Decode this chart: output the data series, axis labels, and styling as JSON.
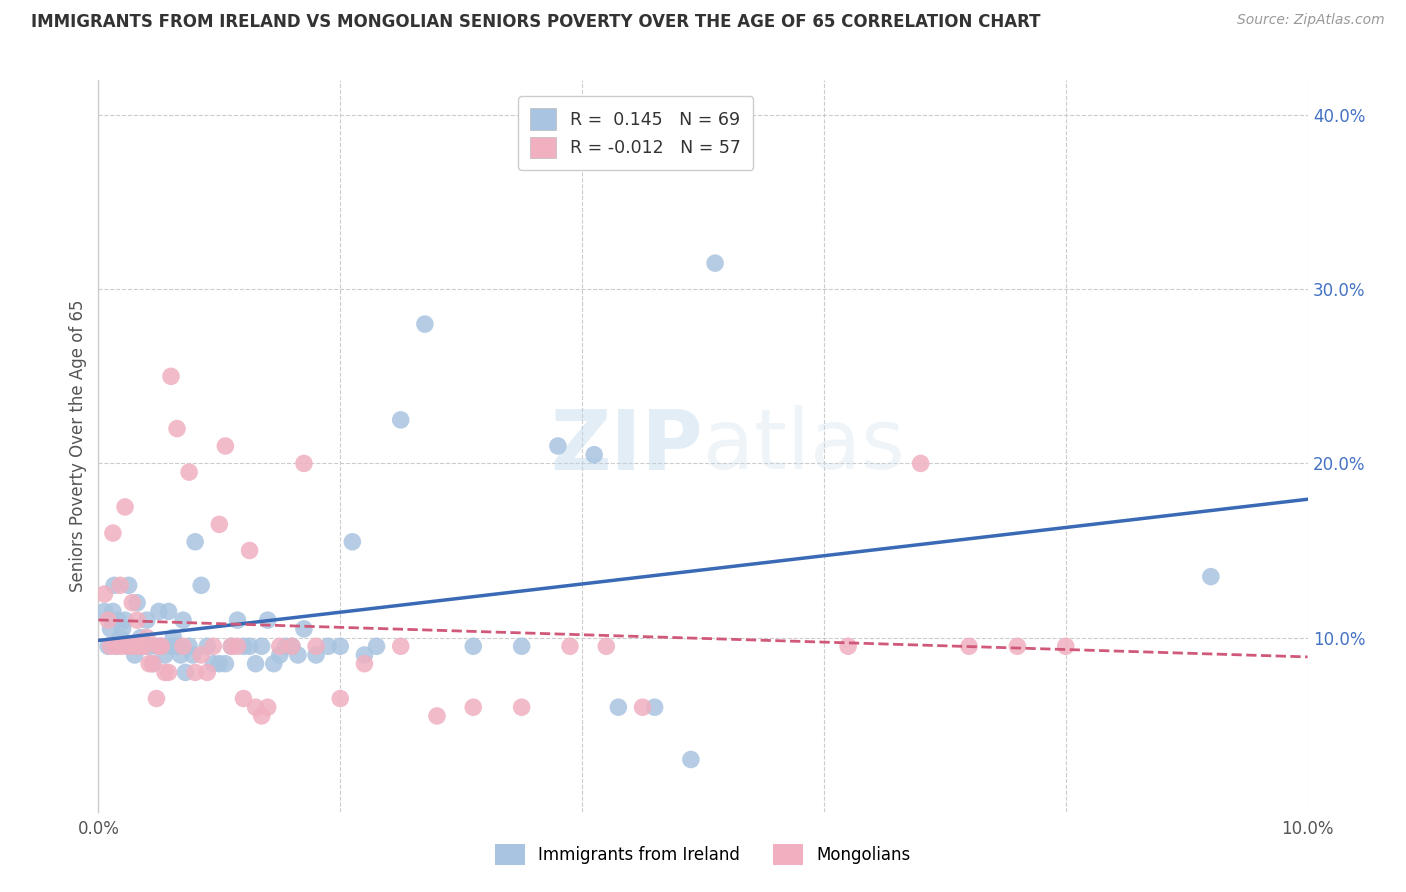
{
  "title": "IMMIGRANTS FROM IRELAND VS MONGOLIAN SENIORS POVERTY OVER THE AGE OF 65 CORRELATION CHART",
  "source": "Source: ZipAtlas.com",
  "ylabel": "Seniors Poverty Over the Age of 65",
  "xlim": [
    0.0,
    0.1
  ],
  "ylim": [
    0.0,
    0.42
  ],
  "ireland_color": "#a8c4e0",
  "mongolia_color": "#f0b0c0",
  "ireland_line_color": "#3a6ab5",
  "mongolia_line_color": "#d05878",
  "legend_R_ireland": "0.145",
  "legend_N_ireland": "69",
  "legend_R_mongolia": "-0.012",
  "legend_N_mongolia": "57",
  "ireland_x": [
    0.0005,
    0.0008,
    0.001,
    0.0012,
    0.0013,
    0.0015,
    0.0016,
    0.0018,
    0.002,
    0.0022,
    0.0025,
    0.0025,
    0.0028,
    0.003,
    0.0032,
    0.0035,
    0.0038,
    0.004,
    0.0042,
    0.0045,
    0.0048,
    0.005,
    0.0052,
    0.0055,
    0.0058,
    0.006,
    0.0062,
    0.0065,
    0.0068,
    0.007,
    0.0072,
    0.0075,
    0.0078,
    0.008,
    0.0085,
    0.009,
    0.0095,
    0.01,
    0.0105,
    0.011,
    0.0115,
    0.012,
    0.0125,
    0.013,
    0.0135,
    0.014,
    0.0145,
    0.015,
    0.0155,
    0.016,
    0.0165,
    0.017,
    0.018,
    0.019,
    0.02,
    0.021,
    0.022,
    0.023,
    0.025,
    0.027,
    0.031,
    0.035,
    0.038,
    0.041,
    0.043,
    0.046,
    0.049,
    0.051,
    0.092
  ],
  "ireland_y": [
    0.115,
    0.095,
    0.105,
    0.115,
    0.13,
    0.095,
    0.11,
    0.1,
    0.105,
    0.11,
    0.095,
    0.13,
    0.095,
    0.09,
    0.12,
    0.1,
    0.095,
    0.11,
    0.095,
    0.085,
    0.095,
    0.115,
    0.095,
    0.09,
    0.115,
    0.095,
    0.1,
    0.095,
    0.09,
    0.11,
    0.08,
    0.095,
    0.09,
    0.155,
    0.13,
    0.095,
    0.085,
    0.085,
    0.085,
    0.095,
    0.11,
    0.095,
    0.095,
    0.085,
    0.095,
    0.11,
    0.085,
    0.09,
    0.095,
    0.095,
    0.09,
    0.105,
    0.09,
    0.095,
    0.095,
    0.155,
    0.09,
    0.095,
    0.225,
    0.28,
    0.095,
    0.095,
    0.21,
    0.205,
    0.06,
    0.06,
    0.03,
    0.315,
    0.135
  ],
  "mongolia_x": [
    0.0005,
    0.0008,
    0.001,
    0.0012,
    0.0015,
    0.0018,
    0.002,
    0.0022,
    0.0025,
    0.0028,
    0.003,
    0.0032,
    0.0035,
    0.0038,
    0.004,
    0.0042,
    0.0045,
    0.0048,
    0.005,
    0.0052,
    0.0055,
    0.0058,
    0.006,
    0.0065,
    0.007,
    0.0075,
    0.008,
    0.0085,
    0.009,
    0.0095,
    0.01,
    0.0105,
    0.011,
    0.0115,
    0.012,
    0.0125,
    0.013,
    0.0135,
    0.014,
    0.015,
    0.016,
    0.017,
    0.018,
    0.02,
    0.022,
    0.025,
    0.028,
    0.031,
    0.035,
    0.039,
    0.042,
    0.045,
    0.062,
    0.068,
    0.072,
    0.076,
    0.08
  ],
  "mongolia_y": [
    0.125,
    0.11,
    0.095,
    0.16,
    0.095,
    0.13,
    0.095,
    0.175,
    0.095,
    0.12,
    0.095,
    0.11,
    0.095,
    0.095,
    0.1,
    0.085,
    0.085,
    0.065,
    0.095,
    0.095,
    0.08,
    0.08,
    0.25,
    0.22,
    0.095,
    0.195,
    0.08,
    0.09,
    0.08,
    0.095,
    0.165,
    0.21,
    0.095,
    0.095,
    0.065,
    0.15,
    0.06,
    0.055,
    0.06,
    0.095,
    0.095,
    0.2,
    0.095,
    0.065,
    0.085,
    0.095,
    0.055,
    0.06,
    0.06,
    0.095,
    0.095,
    0.06,
    0.095,
    0.2,
    0.095,
    0.095,
    0.095
  ]
}
